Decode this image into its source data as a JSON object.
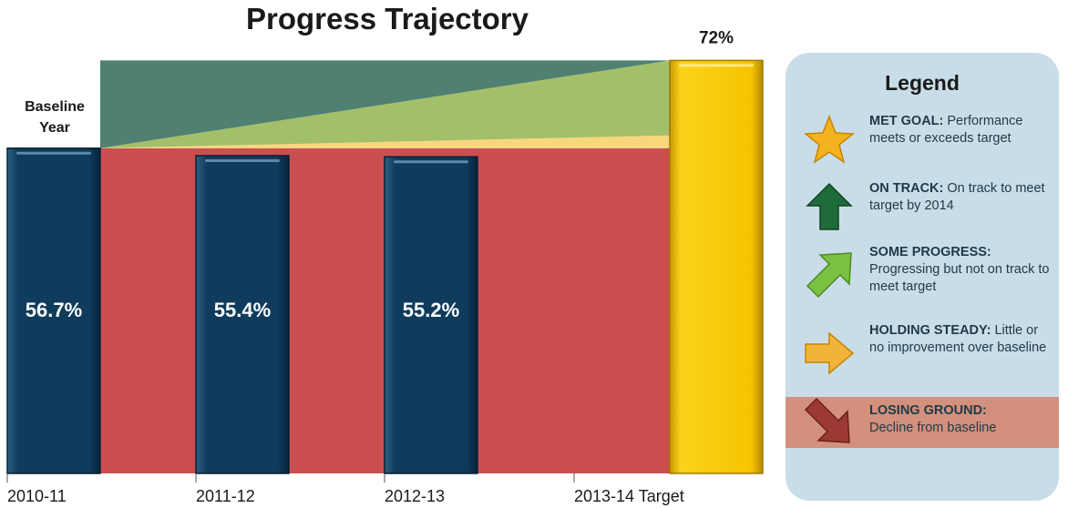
{
  "chart_data": {
    "type": "bar",
    "title": "Progress Trajectory",
    "categories": [
      "2010-11",
      "2011-12",
      "2012-13",
      "2013-14 Target"
    ],
    "values": [
      56.7,
      55.4,
      55.2,
      72
    ],
    "value_labels": [
      "56.7%",
      "55.4%",
      "55.2%",
      "72%"
    ],
    "colors": [
      "#0f3b5c",
      "#0f3b5c",
      "#0f3b5c",
      "#f5c400"
    ],
    "annotation": "Baseline Year",
    "legend": {
      "title": "Legend",
      "items": [
        {
          "label": "MET GOAL:",
          "text": "Performance meets or exceeds target"
        },
        {
          "label": "ON TRACK:",
          "text": "On track to meet target by 2014"
        },
        {
          "label": "SOME PROGRESS:",
          "text": "Progressing but not on track to meet target"
        },
        {
          "label": "HOLDING STEADY:",
          "text": "Little or no improvement over baseline"
        },
        {
          "label": "LOSING GROUND:",
          "text": "Decline from baseline"
        }
      ]
    }
  }
}
